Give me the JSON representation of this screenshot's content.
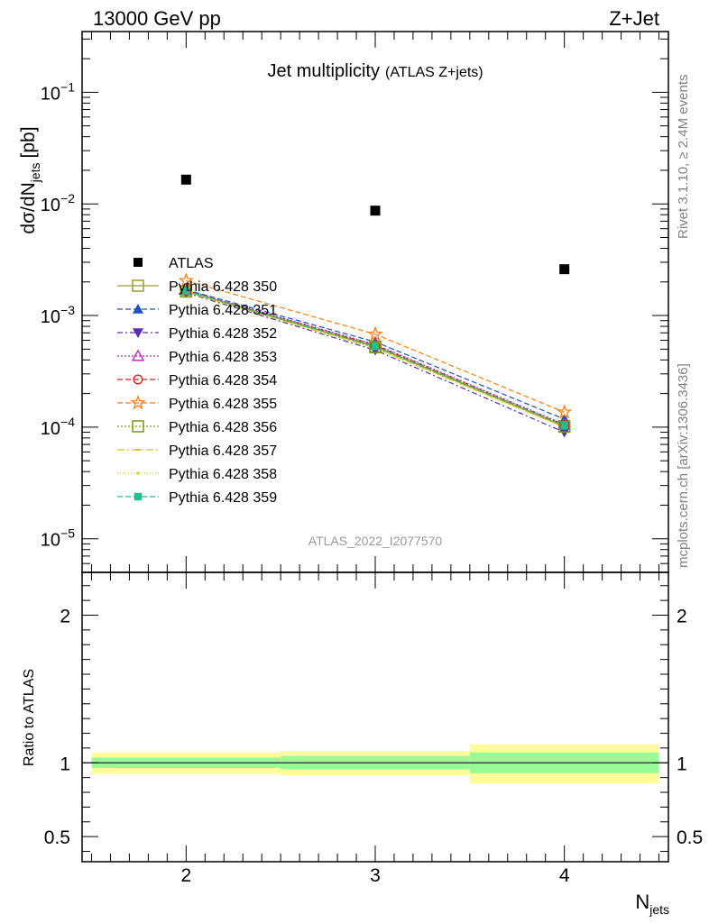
{
  "header": {
    "left": "13000 GeV pp",
    "right": "Z+Jet"
  },
  "side_labels": {
    "rivet": "Rivet 3.1.10, ≥ 2.4M events",
    "mcplots": "mcplots.cern.ch [arXiv:1306.3436]"
  },
  "colors": {
    "band_inner": "#98fb98",
    "band_outer": "#fffb96",
    "watermark": "#999999",
    "side_text": "#808080"
  },
  "chart_data": [
    {
      "type": "line",
      "title": "Jet multiplicity",
      "subtitle": "(ATLAS Z+jets)",
      "analysis_id": "ATLAS_2022_I2077570",
      "xlabel_main": "N",
      "xlabel_sub": "jets",
      "ylabel": "dσ/dN",
      "ylabel_sub": "jets",
      "ylabel_unit": "[pb]",
      "yscale": "log",
      "xlim": [
        1.45,
        4.55
      ],
      "ylim": [
        5e-06,
        0.35
      ],
      "x_ticks": [
        2,
        3,
        4
      ],
      "y_tick_labels": [
        {
          "base": "10",
          "exp": "−1",
          "value": 0.1
        },
        {
          "base": "10",
          "exp": "−2",
          "value": 0.01
        },
        {
          "base": "10",
          "exp": "−3",
          "value": 0.001
        },
        {
          "base": "10",
          "exp": "−4",
          "value": 0.0001
        },
        {
          "base": "10",
          "exp": "−5",
          "value": 1e-05
        }
      ],
      "x": [
        2,
        3,
        4
      ],
      "data_series": {
        "name": "ATLAS",
        "values": [
          0.0165,
          0.0087,
          0.0026
        ]
      },
      "series": [
        {
          "name": "Pythia 6.428 350",
          "color": "#9a9a2e",
          "dash": "",
          "marker": "square-open",
          "values": [
            0.00165,
            0.00053,
            0.000102
          ]
        },
        {
          "name": "Pythia 6.428 351",
          "color": "#1f4fbf",
          "dash": "6,3",
          "marker": "triangle-up",
          "values": [
            0.0017,
            0.00058,
            0.000118
          ]
        },
        {
          "name": "Pythia 6.428 352",
          "color": "#5a2fb0",
          "dash": "6,3,2,3",
          "marker": "triangle-down",
          "values": [
            0.0016,
            0.00049,
            9e-05
          ]
        },
        {
          "name": "Pythia 6.428 353",
          "color": "#c21ec2",
          "dash": "2,2",
          "marker": "triangle-up-open",
          "values": [
            0.00168,
            0.00055,
            0.000106
          ]
        },
        {
          "name": "Pythia 6.428 354",
          "color": "#e41a1c",
          "dash": "6,3",
          "marker": "circle-open",
          "values": [
            0.00166,
            0.00054,
            0.000104
          ]
        },
        {
          "name": "Pythia 6.428 355",
          "color": "#ff7f0e",
          "dash": "6,3",
          "marker": "star-open",
          "values": [
            0.00205,
            0.00068,
            0.000136
          ]
        },
        {
          "name": "Pythia 6.428 356",
          "color": "#7a9a10",
          "dash": "2,2",
          "marker": "square-open",
          "values": [
            0.00164,
            0.00052,
            0.000101
          ]
        },
        {
          "name": "Pythia 6.428 357",
          "color": "#e8c21a",
          "dash": "8,3,2,3",
          "marker": "dash",
          "values": [
            0.00163,
            0.00051,
            0.0001
          ]
        },
        {
          "name": "Pythia 6.428 358",
          "color": "#c8d41e",
          "dash": "1,2",
          "marker": "dot",
          "values": [
            0.00162,
            0.00051,
            9.9e-05
          ]
        },
        {
          "name": "Pythia 6.428 359",
          "color": "#1fbf8f",
          "dash": "6,3",
          "marker": "square",
          "values": [
            0.00166,
            0.00053,
            0.000103
          ]
        }
      ]
    },
    {
      "type": "area",
      "ylabel": "Ratio to ATLAS",
      "xlabel_main": "N",
      "xlabel_sub": "jets",
      "ylim": [
        0.33,
        2.29
      ],
      "y_ticks": [
        0.5,
        1,
        2
      ],
      "y_tick_labels": [
        "0.5",
        "1",
        "2"
      ],
      "x_ticks": [
        2,
        3,
        4
      ],
      "bins": [
        {
          "xlo": 1.5,
          "xhi": 2.5,
          "inner": [
            0.965,
            1.035
          ],
          "outer": [
            0.925,
            1.07
          ]
        },
        {
          "xlo": 2.5,
          "xhi": 3.5,
          "inner": [
            0.955,
            1.045
          ],
          "outer": [
            0.915,
            1.08
          ]
        },
        {
          "xlo": 3.5,
          "xhi": 4.5,
          "inner": [
            0.93,
            1.07
          ],
          "outer": [
            0.86,
            1.125
          ]
        }
      ],
      "reference_line": 1
    }
  ]
}
